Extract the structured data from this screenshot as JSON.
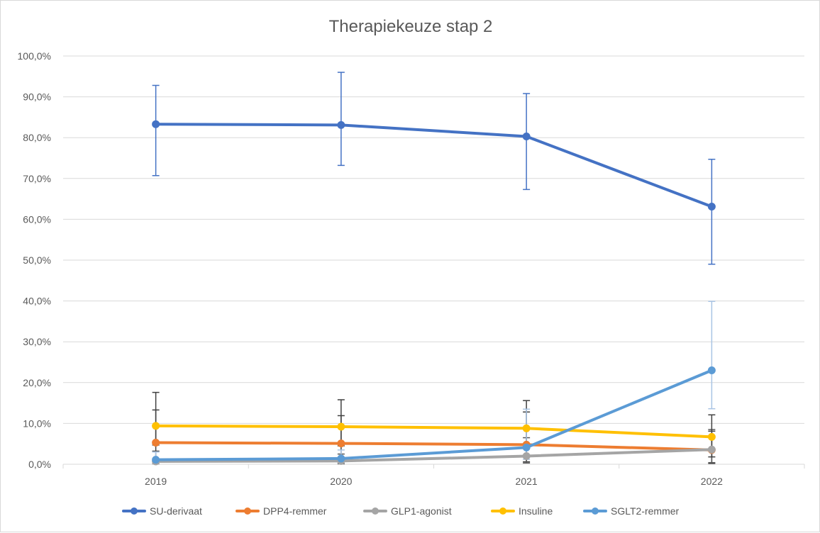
{
  "chart_data": {
    "type": "line",
    "title": "Therapiekeuze  stap 2",
    "categories": [
      "2019",
      "2020",
      "2021",
      "2022"
    ],
    "y_ticks": [
      "0,0%",
      "10,0%",
      "20,0%",
      "30,0%",
      "40,0%",
      "50,0%",
      "60,0%",
      "70,0%",
      "80,0%",
      "90,0%",
      "100,0%"
    ],
    "ylim": [
      0,
      100
    ],
    "grid": true,
    "legend_position": "bottom",
    "series": [
      {
        "name": "SU-derivaat",
        "color": "#4472c4",
        "values": [
          83.3,
          83.1,
          80.3,
          63.1
        ],
        "error_low": [
          70.7,
          73.2,
          67.3,
          49.0
        ],
        "error_high": [
          92.8,
          96.0,
          90.8,
          74.7
        ]
      },
      {
        "name": "DPP4-remmer",
        "color": "#ed7d31",
        "values": [
          5.3,
          5.1,
          4.8,
          3.5
        ],
        "error_low": [
          3.2,
          0.4,
          0.6,
          0.2
        ],
        "error_high": [
          13.3,
          11.9,
          12.8,
          8.1
        ]
      },
      {
        "name": "GLP1-agonist",
        "color": "#a5a5a5",
        "values": [
          0.7,
          0.8,
          2.0,
          3.6
        ],
        "error_low": [
          0.1,
          0.1,
          0.3,
          0.4
        ],
        "error_high": [
          3.2,
          2.5,
          6.5,
          8.5
        ]
      },
      {
        "name": "Insuline",
        "color": "#ffc000",
        "values": [
          9.4,
          9.2,
          8.8,
          6.7
        ],
        "error_low": [
          4.7,
          4.5,
          4.2,
          1.8
        ],
        "error_high": [
          17.6,
          15.8,
          15.6,
          12.1
        ]
      },
      {
        "name": "SGLT2-remmer",
        "color": "#5b9bd5",
        "values": [
          1.1,
          1.4,
          4.1,
          23.0
        ],
        "error_low": [
          0.2,
          0.3,
          1.2,
          13.6
        ],
        "error_high": [
          3.0,
          3.5,
          13.5,
          39.9
        ]
      }
    ]
  }
}
